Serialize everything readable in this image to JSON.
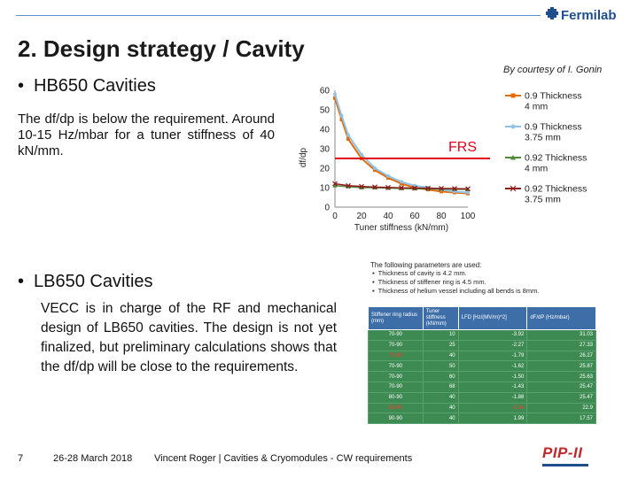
{
  "header": {
    "brand": "Fermilab",
    "brand_icon": "fermilab-logo-icon"
  },
  "title": "2. Design strategy  / Cavity",
  "courtesy": "By courtesy of I. Gonin",
  "section1": {
    "bullet": "HB650 Cavities",
    "text": "The df/dp is below the requirement. Around 10-15 Hz/mbar for a tuner stiffness of 40 kN/mm."
  },
  "chart_data": {
    "type": "line",
    "title": "",
    "xlabel": "Tuner stiffness (kN/mm)",
    "ylabel": "df/dp",
    "xlim": [
      0,
      100
    ],
    "ylim": [
      0,
      60
    ],
    "x_ticks": [
      "0",
      "20",
      "40",
      "60",
      "80",
      "100"
    ],
    "y_ticks": [
      "0",
      "10",
      "20",
      "30",
      "40",
      "50",
      "60"
    ],
    "grid": false,
    "legend_position": "right",
    "annotation": "FRS",
    "threshold": 25,
    "series": [
      {
        "name": "0.9 Thickness 4 mm",
        "color": "#e36c0a",
        "marker": "square",
        "x": [
          0,
          5,
          10,
          20,
          30,
          40,
          50,
          60,
          70,
          80,
          90,
          100
        ],
        "y": [
          56,
          45,
          35,
          25,
          19,
          15,
          12,
          10,
          9,
          8,
          7.5,
          7
        ]
      },
      {
        "name": "0.9 Thickness 3.75 mm",
        "color": "#8fc3e6",
        "marker": "circle",
        "x": [
          0,
          5,
          10,
          20,
          30,
          40,
          50,
          60,
          70,
          80,
          90,
          100
        ],
        "y": [
          58,
          47,
          37,
          27,
          20,
          16,
          13,
          11,
          10,
          9,
          8,
          7.5
        ]
      },
      {
        "name": "0.92 Thickness 4 mm",
        "color": "#4e8a3a",
        "marker": "triangle",
        "x": [
          0,
          10,
          20,
          30,
          40,
          50,
          60,
          70,
          80,
          90,
          100
        ],
        "y": [
          11,
          10.5,
          10,
          10,
          9.8,
          9.6,
          9.5,
          9.4,
          9.3,
          9.2,
          9.1
        ]
      },
      {
        "name": "0.92 Thickness 3.75 mm",
        "color": "#8b1a1a",
        "marker": "x",
        "x": [
          0,
          10,
          20,
          30,
          40,
          50,
          60,
          70,
          80,
          90,
          100
        ],
        "y": [
          12,
          11,
          10.6,
          10.3,
          10.1,
          9.9,
          9.8,
          9.7,
          9.6,
          9.5,
          9.4
        ]
      }
    ]
  },
  "section2": {
    "bullet": "LB650 Cavities",
    "text": "VECC is in charge of the RF and mechanical design of LB650 cavities. The design is not yet finalized, but preliminary calculations shows that the df/dp will be close to the requirements."
  },
  "params": {
    "heading": "The following parameters are used:",
    "items": [
      "Thickness of cavity is 4.2 mm.",
      "Thickness of stiffener ring is 4.5 mm.",
      "Thickness of helium vessel including all bends is 8mm."
    ],
    "columns": [
      "Stiffener ring radius (mm)",
      "Tuner stiffness (kN/mm)",
      "LFD [Hz/(MV/m)^2]",
      "dF/dP (Hz/mbar)"
    ],
    "rows": [
      {
        "radius": "70-90",
        "stiffness": "10",
        "lfd": "-3.92",
        "dfdp": "31.03",
        "red_radius": false,
        "red_lfd": false
      },
      {
        "radius": "70-90",
        "stiffness": "25",
        "lfd": "-2.27",
        "dfdp": "27.33",
        "red_radius": false,
        "red_lfd": false
      },
      {
        "radius": "70-90",
        "stiffness": "40",
        "lfd": "-1.79",
        "dfdp": "26.27",
        "red_radius": true,
        "red_lfd": false
      },
      {
        "radius": "70-90",
        "stiffness": "50",
        "lfd": "-1.62",
        "dfdp": "25.87",
        "red_radius": false,
        "red_lfd": false
      },
      {
        "radius": "70-90",
        "stiffness": "60",
        "lfd": "-1.50",
        "dfdp": "25.63",
        "red_radius": false,
        "red_lfd": false
      },
      {
        "radius": "70-90",
        "stiffness": "68",
        "lfd": "-1.43",
        "dfdp": "25.47",
        "red_radius": false,
        "red_lfd": false
      },
      {
        "radius": "80-90",
        "stiffness": "40",
        "lfd": "-1.88",
        "dfdp": "25.47",
        "red_radius": false,
        "red_lfd": false
      },
      {
        "radius": "85-90",
        "stiffness": "40",
        "lfd": "-1.94",
        "dfdp": "22.9",
        "red_radius": true,
        "red_lfd": true
      },
      {
        "radius": "90-90",
        "stiffness": "40",
        "lfd": "1.99",
        "dfdp": "17.57",
        "red_radius": false,
        "red_lfd": false
      }
    ]
  },
  "footer": {
    "page": "7",
    "date": "26-28 March 2018",
    "author": "Vincent Roger | Cavities & Cryomodules - CW requirements",
    "logo": "PIP-II"
  }
}
